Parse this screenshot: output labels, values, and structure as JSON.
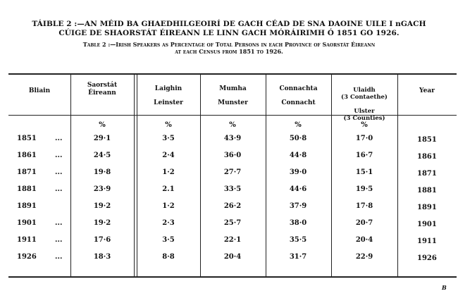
{
  "title_irish": [
    "TÁIBLE 2 :—AN MÉID BA GHAEDHILGEOIRÍ DE GACH CÉAD DE SNA DAOINE UILE I nGACH",
    "CÚIGE DE SHAORSTÁT ÉIREANN LE LINN GACH MÓRÁIRIMH Ó 1851 GO 1926."
  ],
  "title_english": [
    "Table 2 :—Irish Speakers as Percentage of Total Persons in each Province of Saorstát Éireann",
    "at each Census from 1851 to 1926."
  ],
  "columns": [
    {
      "irish": "Bliain",
      "english": ""
    },
    {
      "irish": "Saorstát",
      "english": "Éireann"
    },
    {
      "irish": "Laighin",
      "english": "Leinster"
    },
    {
      "irish": "Mumha",
      "english": "Munster"
    },
    {
      "irish": "Connachta",
      "english": "Connacht"
    },
    {
      "irish": "Ulaidh\n(3 Contaethe)",
      "english": "Ulster\n(3 Counties)"
    },
    {
      "irish": "Year",
      "english": ""
    }
  ],
  "unit": "%",
  "dots": "...",
  "rows": [
    {
      "year": "1851",
      "dots": "...",
      "values": [
        "29·1",
        "3·5",
        "43·9",
        "50·8",
        "17·0"
      ]
    },
    {
      "year": "1861",
      "dots": "...",
      "values": [
        "24·5",
        "2·4",
        "36·0",
        "44·8",
        "16·7"
      ]
    },
    {
      "year": "1871",
      "dots": "...",
      "values": [
        "19·8",
        "1·2",
        "27·7",
        "39·0",
        "15·1"
      ]
    },
    {
      "year": "1881",
      "dots": "...",
      "values": [
        "23·9",
        "2.1",
        "33·5",
        "44·6",
        "19·5"
      ]
    },
    {
      "year": "1891",
      "dots": "",
      "values": [
        "19·2",
        "1·2",
        "26·2",
        "37·9",
        "17·8"
      ]
    },
    {
      "year": "1901",
      "dots": "...",
      "values": [
        "19·2",
        "2·3",
        "25·7",
        "38·0",
        "20·7"
      ]
    },
    {
      "year": "1911",
      "dots": "...",
      "values": [
        "17·6",
        "3·5",
        "22·1",
        "35·5",
        "20·4"
      ]
    },
    {
      "year": "1926",
      "dots": "...",
      "values": [
        "18·3",
        "8·8",
        "20·4",
        "31·7",
        "22·9"
      ]
    }
  ],
  "page_mark": "B"
}
